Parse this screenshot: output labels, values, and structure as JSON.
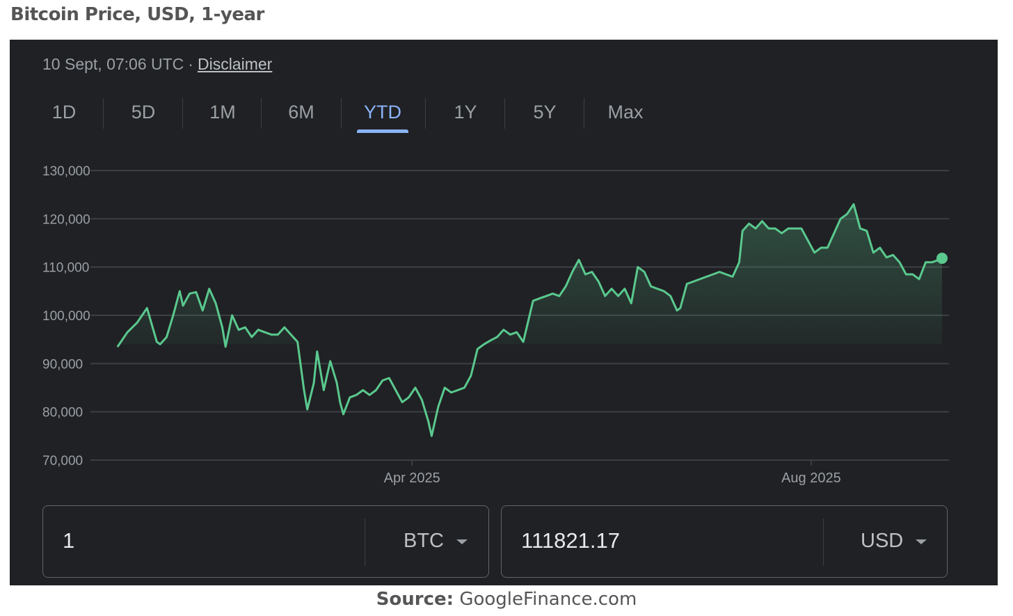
{
  "page": {
    "title": "Bitcoin Price, USD, 1-year",
    "source_label": "Source:",
    "source_text": "GoogleFinance.com"
  },
  "widget": {
    "timestamp": "10 Sept, 07:06 UTC",
    "separator": "·",
    "disclaimer": "Disclaimer",
    "tabs": [
      "1D",
      "5D",
      "1M",
      "6M",
      "YTD",
      "1Y",
      "5Y",
      "Max"
    ],
    "active_tab": "YTD",
    "colors": {
      "background": "#202124",
      "line": "#5ac98e",
      "active_tab": "#8ab4f8",
      "grid": "#3c4043",
      "tick_label": "#9aa0a6"
    }
  },
  "converter": {
    "from_value": "1",
    "from_currency": "BTC",
    "to_value": "111821.17",
    "to_currency": "USD",
    "dropdown_icon": "caret-down-icon"
  },
  "chart_data": {
    "type": "area",
    "title": "",
    "xlabel": "",
    "ylabel": "",
    "x_range": [
      "2025-01-01",
      "2025-09-10"
    ],
    "ylim": [
      70000,
      130000
    ],
    "y_ticks": [
      70000,
      80000,
      90000,
      100000,
      110000,
      120000,
      130000
    ],
    "y_tick_labels": [
      "70,000",
      "80,000",
      "90,000",
      "100,000",
      "110,000",
      "120,000",
      "130,000"
    ],
    "x_ticks": [
      "2025-04-01",
      "2025-08-01"
    ],
    "x_tick_labels": [
      "Apr 2025",
      "Aug 2025"
    ],
    "grid": true,
    "baseline": 94000,
    "last_value": 111821.17,
    "x": [
      "2025-01-01",
      "2025-01-04",
      "2025-01-07",
      "2025-01-10",
      "2025-01-13",
      "2025-01-14",
      "2025-01-16",
      "2025-01-18",
      "2025-01-20",
      "2025-01-21",
      "2025-01-23",
      "2025-01-25",
      "2025-01-27",
      "2025-01-29",
      "2025-01-31",
      "2025-02-02",
      "2025-02-03",
      "2025-02-05",
      "2025-02-07",
      "2025-02-09",
      "2025-02-11",
      "2025-02-13",
      "2025-02-15",
      "2025-02-17",
      "2025-02-19",
      "2025-02-21",
      "2025-02-23",
      "2025-02-25",
      "2025-02-27",
      "2025-02-28",
      "2025-03-02",
      "2025-03-03",
      "2025-03-05",
      "2025-03-07",
      "2025-03-09",
      "2025-03-10",
      "2025-03-11",
      "2025-03-13",
      "2025-03-15",
      "2025-03-17",
      "2025-03-19",
      "2025-03-21",
      "2025-03-23",
      "2025-03-25",
      "2025-03-27",
      "2025-03-29",
      "2025-03-31",
      "2025-04-02",
      "2025-04-04",
      "2025-04-06",
      "2025-04-07",
      "2025-04-09",
      "2025-04-11",
      "2025-04-13",
      "2025-04-15",
      "2025-04-17",
      "2025-04-19",
      "2025-04-21",
      "2025-04-23",
      "2025-04-25",
      "2025-04-27",
      "2025-04-29",
      "2025-05-01",
      "2025-05-03",
      "2025-05-05",
      "2025-05-08",
      "2025-05-10",
      "2025-05-12",
      "2025-05-14",
      "2025-05-16",
      "2025-05-18",
      "2025-05-20",
      "2025-05-22",
      "2025-05-24",
      "2025-05-26",
      "2025-05-28",
      "2025-05-30",
      "2025-06-01",
      "2025-06-03",
      "2025-06-05",
      "2025-06-07",
      "2025-06-09",
      "2025-06-11",
      "2025-06-13",
      "2025-06-15",
      "2025-06-17",
      "2025-06-19",
      "2025-06-21",
      "2025-06-22",
      "2025-06-24",
      "2025-06-26",
      "2025-06-28",
      "2025-06-30",
      "2025-07-02",
      "2025-07-04",
      "2025-07-06",
      "2025-07-08",
      "2025-07-10",
      "2025-07-11",
      "2025-07-13",
      "2025-07-15",
      "2025-07-17",
      "2025-07-19",
      "2025-07-21",
      "2025-07-23",
      "2025-07-25",
      "2025-07-27",
      "2025-07-29",
      "2025-07-31",
      "2025-08-02",
      "2025-08-04",
      "2025-08-06",
      "2025-08-08",
      "2025-08-10",
      "2025-08-12",
      "2025-08-14",
      "2025-08-16",
      "2025-08-18",
      "2025-08-20",
      "2025-08-22",
      "2025-08-24",
      "2025-08-26",
      "2025-08-28",
      "2025-08-30",
      "2025-09-01",
      "2025-09-03",
      "2025-09-05",
      "2025-09-07",
      "2025-09-09",
      "2025-09-10"
    ],
    "series": [
      {
        "values": [
          93500,
          96500,
          98500,
          101500,
          94500,
          94000,
          95500,
          100000,
          105000,
          102000,
          104500,
          104800,
          101000,
          105500,
          102500,
          97500,
          93500,
          100000,
          97000,
          97500,
          95500,
          97000,
          96500,
          96000,
          96000,
          97500,
          96000,
          94500,
          84500,
          80500,
          86000,
          92500,
          84500,
          90500,
          86000,
          82000,
          79500,
          83000,
          83500,
          84500,
          83500,
          84500,
          86500,
          87000,
          84500,
          82000,
          83000,
          85000,
          82500,
          78000,
          75000,
          81000,
          85000,
          84000,
          84500,
          85000,
          87500,
          93000,
          94000,
          94800,
          95500,
          97000,
          96000,
          96500,
          94500,
          103000,
          103500,
          104000,
          104500,
          104000,
          106000,
          109000,
          111500,
          108500,
          109000,
          107000,
          104000,
          105500,
          104000,
          105500,
          102500,
          110000,
          109000,
          106000,
          105500,
          105000,
          104000,
          101000,
          101500,
          106500,
          107000,
          107500,
          108000,
          108500,
          109000,
          108500,
          108000,
          111000,
          117500,
          119000,
          118000,
          119500,
          118000,
          118000,
          117000,
          118000,
          118000,
          118000,
          115500,
          113000,
          114000,
          114000,
          117000,
          120000,
          121000,
          123000,
          118000,
          117500,
          113000,
          114000,
          112000,
          112500,
          111000,
          108500,
          108500,
          107500,
          111000,
          111000,
          111500,
          111821.17
        ]
      }
    ]
  }
}
